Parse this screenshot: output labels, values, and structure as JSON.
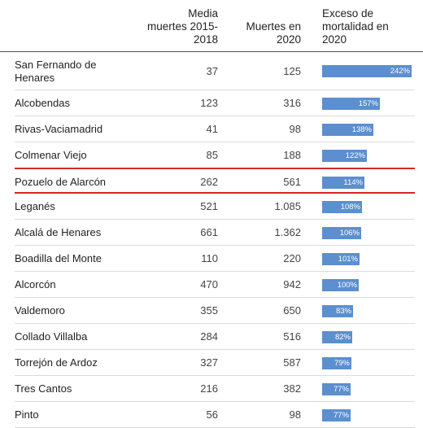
{
  "header": {
    "col1": "Media\nmuertes 2015-\n2018",
    "col2": "Muertes en\n2020",
    "col3": "Exceso de\nmortalidad en\n2020"
  },
  "chart_data": {
    "type": "table",
    "columns": [
      "",
      "Media muertes 2015-2018",
      "Muertes en 2020",
      "Exceso de mortalidad en 2020"
    ],
    "highlight": "Pozuelo de Alarcón",
    "highlight_color": "#d62728",
    "bar_color": "#5b8fcf",
    "xlim": [
      0,
      242
    ],
    "rows": [
      {
        "name": "San Fernando de\nHenares",
        "media": "37",
        "muertes": "125",
        "exceso": 242,
        "exceso_label": "242%"
      },
      {
        "name": "Alcobendas",
        "media": "123",
        "muertes": "316",
        "exceso": 157,
        "exceso_label": "157%"
      },
      {
        "name": "Rivas-Vaciamadrid",
        "media": "41",
        "muertes": "98",
        "exceso": 138,
        "exceso_label": "138%"
      },
      {
        "name": "Colmenar Viejo",
        "media": "85",
        "muertes": "188",
        "exceso": 122,
        "exceso_label": "122%"
      },
      {
        "name": "Pozuelo de Alarcón",
        "media": "262",
        "muertes": "561",
        "exceso": 114,
        "exceso_label": "114%"
      },
      {
        "name": "Leganés",
        "media": "521",
        "muertes": "1.085",
        "exceso": 108,
        "exceso_label": "108%"
      },
      {
        "name": "Alcalá de Henares",
        "media": "661",
        "muertes": "1.362",
        "exceso": 106,
        "exceso_label": "106%"
      },
      {
        "name": "Boadilla del Monte",
        "media": "110",
        "muertes": "220",
        "exceso": 101,
        "exceso_label": "101%"
      },
      {
        "name": "Alcorcón",
        "media": "470",
        "muertes": "942",
        "exceso": 100,
        "exceso_label": "100%"
      },
      {
        "name": "Valdemoro",
        "media": "355",
        "muertes": "650",
        "exceso": 83,
        "exceso_label": "83%"
      },
      {
        "name": "Collado Villalba",
        "media": "284",
        "muertes": "516",
        "exceso": 82,
        "exceso_label": "82%"
      },
      {
        "name": "Torrejón de Ardoz",
        "media": "327",
        "muertes": "587",
        "exceso": 79,
        "exceso_label": "79%"
      },
      {
        "name": "Tres Cantos",
        "media": "216",
        "muertes": "382",
        "exceso": 77,
        "exceso_label": "77%"
      },
      {
        "name": "Pinto",
        "media": "56",
        "muertes": "98",
        "exceso": 77,
        "exceso_label": "77%"
      }
    ]
  }
}
